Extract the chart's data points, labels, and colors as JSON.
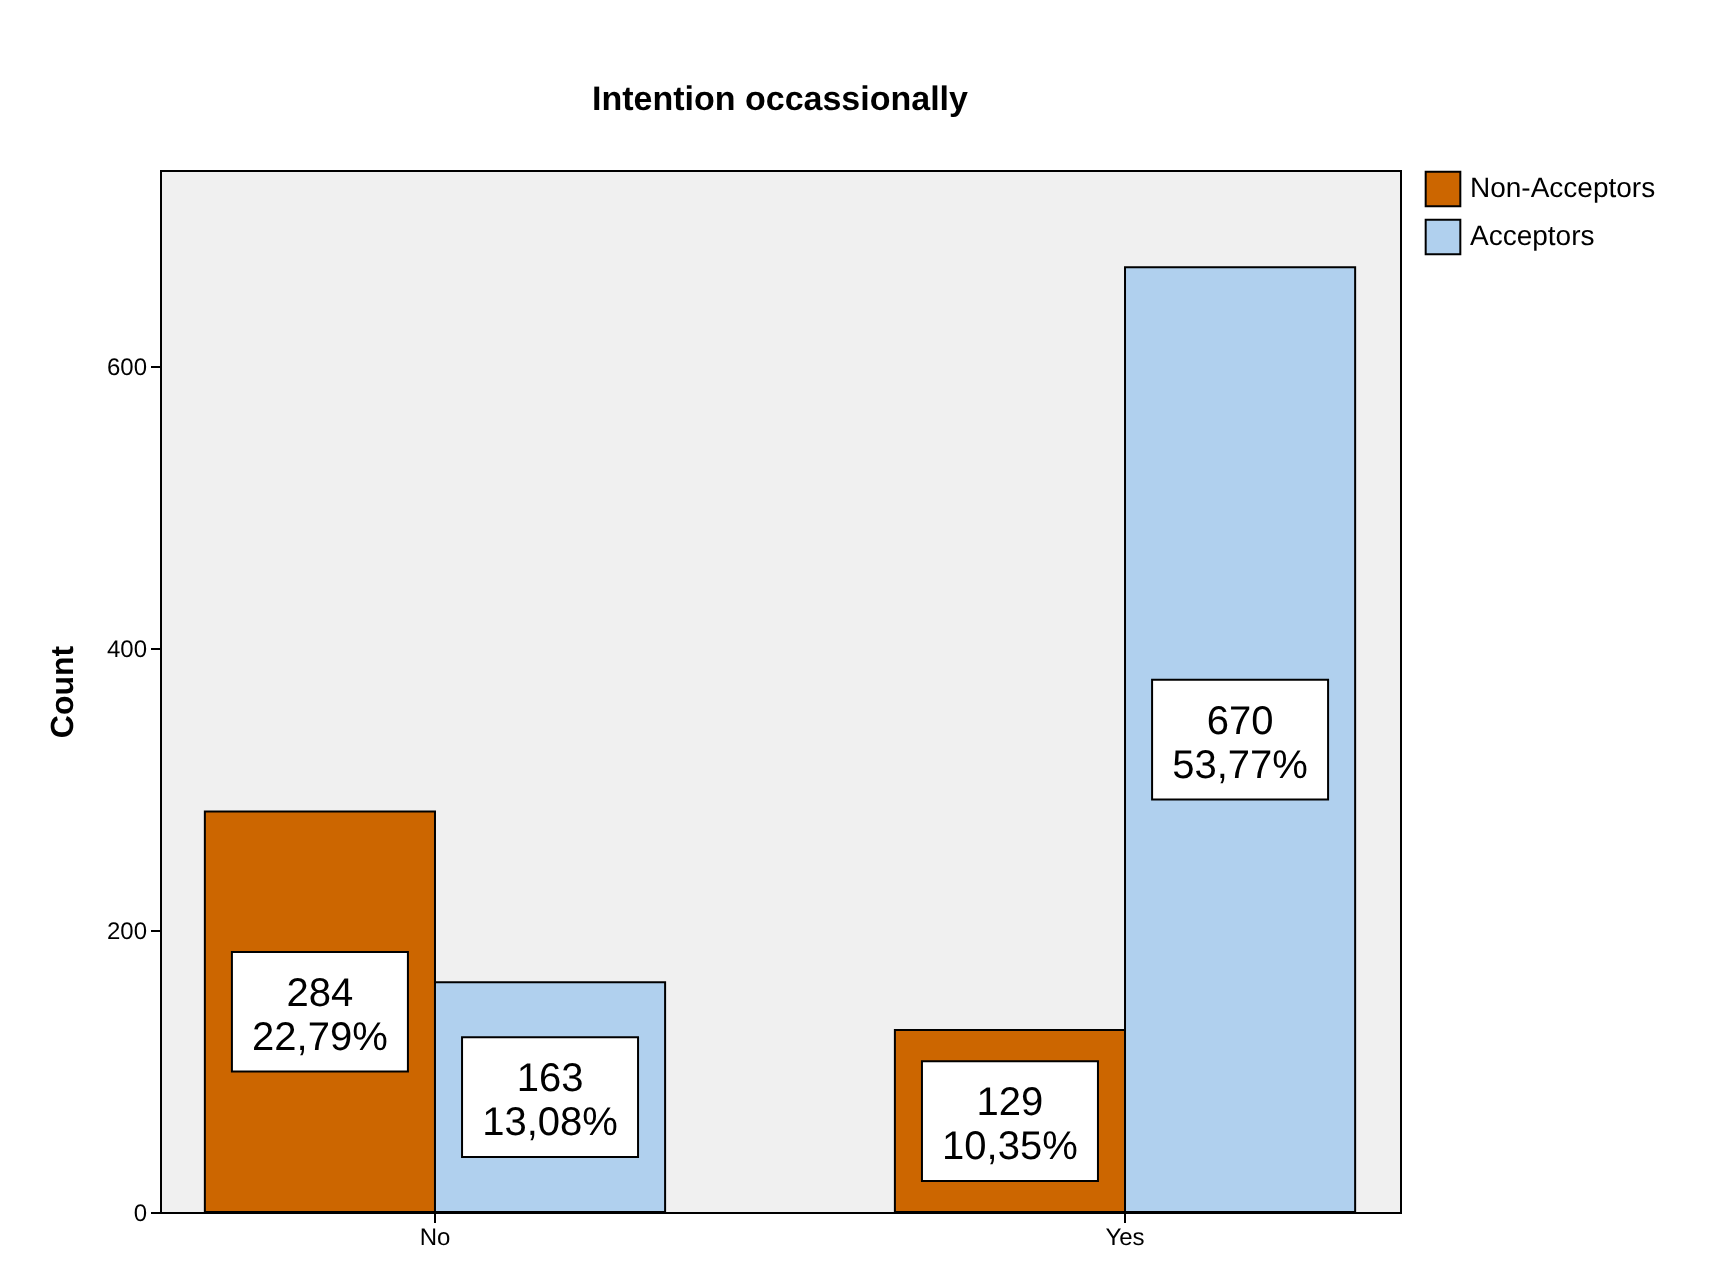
{
  "chart_data": {
    "type": "bar",
    "title": "Intention occassionally",
    "ylabel": "Count",
    "categories": [
      "No",
      "Yes"
    ],
    "series": [
      {
        "name": "Non-Acceptors",
        "color": "#cc6600",
        "values": [
          284,
          129
        ],
        "value_labels": [
          "284\n22,79%",
          "129\n10,35%"
        ]
      },
      {
        "name": "Acceptors",
        "color": "#b0d0ee",
        "values": [
          163,
          670
        ],
        "value_labels": [
          "163\n13,08%",
          "670\n53,77%"
        ]
      }
    ],
    "ylim": [
      0,
      739
    ],
    "yticks": [
      0,
      200,
      400,
      600
    ],
    "grid": false,
    "legend": "top right"
  }
}
